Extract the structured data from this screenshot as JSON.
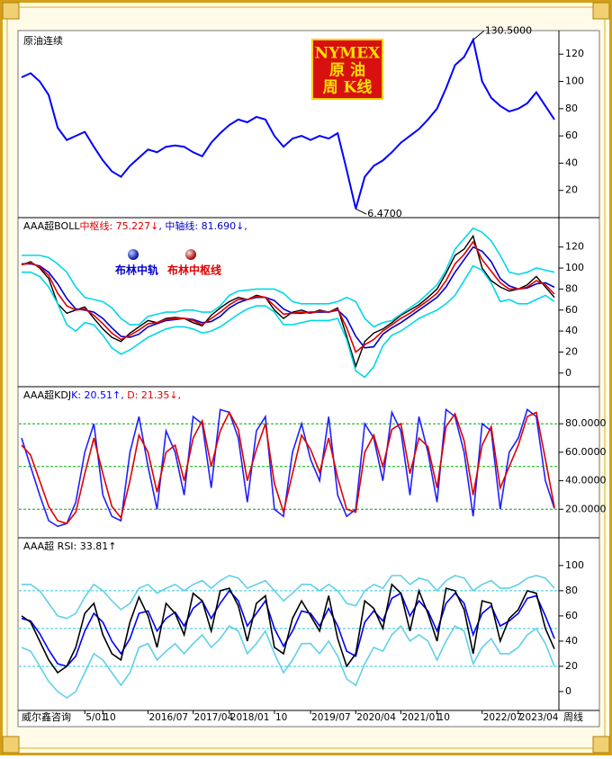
{
  "chart_data": [
    {
      "type": "line",
      "title": "原油连续",
      "badge": [
        "NYMEX",
        "原 油",
        "周 K线"
      ],
      "series": [
        {
          "name": "原油连续",
          "color": "#0000ff",
          "values": [
            103,
            106,
            100,
            90,
            66,
            57,
            60,
            63,
            52,
            42,
            34,
            30,
            38,
            44,
            50,
            48,
            52,
            53,
            52,
            48,
            45,
            55,
            62,
            68,
            72,
            70,
            74,
            72,
            60,
            52,
            58,
            60,
            57,
            60,
            58,
            62,
            35,
            6.47,
            30,
            38,
            42,
            48,
            55,
            60,
            65,
            72,
            80,
            95,
            112,
            118,
            130.5,
            100,
            88,
            82,
            78,
            80,
            84,
            92,
            82,
            72
          ]
        }
      ],
      "annotations": [
        {
          "value": 130.5,
          "label": "130.5000"
        },
        {
          "value": 6.47,
          "label": "6.4700"
        }
      ],
      "ylim": [
        0,
        136
      ],
      "yticks": [
        20,
        40,
        60,
        80,
        100,
        120
      ]
    },
    {
      "type": "line",
      "title": "AAA超BOLL",
      "readouts": [
        {
          "text": "中枢线: 75.227↓",
          "color": "#e00000"
        },
        {
          "text": ", 中轴线: 81.690↓,",
          "color": "#0000cc"
        }
      ],
      "series": [
        {
          "color": "#00d8e8",
          "values": [
            112,
            112,
            112,
            110,
            104,
            96,
            82,
            72,
            70,
            68,
            62,
            52,
            46,
            46,
            54,
            56,
            58,
            58,
            60,
            60,
            58,
            58,
            64,
            74,
            78,
            79,
            80,
            80,
            80,
            76,
            68,
            66,
            66,
            66,
            66,
            68,
            72,
            68,
            52,
            44,
            48,
            50,
            56,
            62,
            68,
            76,
            84,
            98,
            118,
            128,
            138,
            134,
            126,
            112,
            96,
            94,
            96,
            100,
            98,
            96
          ]
        },
        {
          "color": "#00d8e8",
          "values": [
            96,
            96,
            92,
            82,
            66,
            46,
            40,
            48,
            46,
            36,
            24,
            18,
            22,
            28,
            34,
            38,
            42,
            44,
            44,
            42,
            38,
            40,
            44,
            50,
            56,
            61,
            64,
            64,
            58,
            46,
            46,
            48,
            50,
            50,
            50,
            52,
            32,
            2,
            -4,
            6,
            26,
            36,
            40,
            46,
            52,
            56,
            60,
            66,
            74,
            88,
            102,
            98,
            86,
            68,
            70,
            66,
            66,
            70,
            74,
            68
          ]
        },
        {
          "name": "布林中轨",
          "color": "#0000cc",
          "values": [
            104,
            104,
            102,
            96,
            85,
            71,
            61,
            60,
            58,
            52,
            43,
            35,
            34,
            37,
            44,
            47,
            50,
            51,
            52,
            51,
            48,
            49,
            54,
            62,
            67,
            70,
            72,
            72,
            69,
            61,
            57,
            57,
            58,
            58,
            58,
            60,
            52,
            35,
            24,
            25,
            37,
            43,
            48,
            54,
            60,
            66,
            72,
            82,
            96,
            108,
            120,
            116,
            106,
            90,
            83,
            80,
            81,
            85,
            86,
            81.69
          ]
        },
        {
          "name": "布林中枢线",
          "color": "#e00000",
          "values": [
            103,
            105,
            101,
            93,
            76,
            64,
            60,
            61,
            55,
            47,
            38,
            32,
            36,
            41,
            47,
            48,
            51,
            52,
            52,
            50,
            46,
            52,
            58,
            65,
            70,
            70,
            73,
            72,
            64,
            56,
            57,
            58,
            57,
            59,
            58,
            61,
            43,
            20,
            27,
            32,
            40,
            46,
            52,
            57,
            63,
            69,
            76,
            88,
            104,
            113,
            125,
            108,
            97,
            86,
            80,
            80,
            82,
            88,
            84,
            75.227
          ]
        }
      ],
      "ylim": [
        -13,
        148
      ],
      "yticks": [
        0,
        20,
        40,
        60,
        80,
        100,
        120
      ]
    },
    {
      "type": "line",
      "title": "AAA超KDJ",
      "readouts": [
        {
          "text": "K: 20.51↑,",
          "color": "#0000ff"
        },
        {
          "text": " D: 21.35↓,",
          "color": "#e00000"
        }
      ],
      "series": [
        {
          "color": "#2020ff",
          "values": [
            70,
            50,
            30,
            12,
            8,
            10,
            25,
            60,
            80,
            30,
            15,
            12,
            60,
            85,
            50,
            20,
            75,
            60,
            30,
            85,
            80,
            35,
            90,
            88,
            70,
            25,
            75,
            85,
            20,
            15,
            60,
            80,
            55,
            40,
            85,
            30,
            15,
            20,
            80,
            70,
            40,
            88,
            75,
            30,
            85,
            60,
            25,
            90,
            85,
            60,
            15,
            80,
            75,
            20,
            60,
            70,
            90,
            85,
            40,
            20.51
          ]
        },
        {
          "color": "#e00000",
          "values": [
            65,
            58,
            40,
            22,
            12,
            10,
            18,
            45,
            70,
            45,
            22,
            14,
            40,
            72,
            60,
            32,
            60,
            65,
            40,
            70,
            82,
            50,
            75,
            88,
            76,
            40,
            62,
            80,
            38,
            18,
            45,
            72,
            62,
            46,
            70,
            42,
            20,
            18,
            60,
            72,
            50,
            76,
            80,
            45,
            70,
            64,
            35,
            78,
            87,
            68,
            30,
            65,
            78,
            35,
            50,
            65,
            85,
            88,
            55,
            21.35
          ]
        }
      ],
      "ref_lines": [
        20,
        50,
        80
      ],
      "ref_color": "#00b000",
      "ylim": [
        0,
        106
      ],
      "yticks": [
        {
          "value": 20,
          "label": "20.0000"
        },
        {
          "value": 40,
          "label": "40.0000"
        },
        {
          "value": 60,
          "label": "60.0000"
        },
        {
          "value": 80,
          "label": "80.0000"
        }
      ]
    },
    {
      "type": "line",
      "title": "AAA超 RSI: 33.81↑",
      "series": [
        {
          "color": "#60d0e8",
          "values": [
            85,
            85,
            80,
            70,
            60,
            58,
            62,
            75,
            85,
            80,
            72,
            65,
            70,
            82,
            85,
            78,
            82,
            85,
            80,
            85,
            88,
            82,
            88,
            92,
            90,
            82,
            85,
            88,
            80,
            72,
            78,
            85,
            85,
            80,
            85,
            80,
            70,
            68,
            80,
            85,
            82,
            92,
            92,
            85,
            90,
            88,
            80,
            88,
            92,
            90,
            80,
            85,
            88,
            82,
            82,
            85,
            90,
            92,
            90,
            82
          ]
        },
        {
          "color": "#60d0e8",
          "values": [
            35,
            32,
            20,
            8,
            0,
            -5,
            0,
            15,
            30,
            25,
            15,
            5,
            15,
            35,
            38,
            25,
            32,
            38,
            30,
            38,
            45,
            35,
            42,
            52,
            48,
            30,
            38,
            48,
            30,
            15,
            25,
            38,
            38,
            30,
            40,
            28,
            10,
            5,
            22,
            35,
            32,
            45,
            52,
            40,
            45,
            40,
            25,
            40,
            52,
            48,
            22,
            35,
            42,
            30,
            30,
            35,
            45,
            50,
            38,
            20
          ]
        },
        {
          "color": "#0000ff",
          "values": [
            58,
            56,
            46,
            33,
            22,
            20,
            28,
            48,
            62,
            55,
            40,
            30,
            42,
            62,
            64,
            48,
            58,
            63,
            52,
            66,
            72,
            58,
            70,
            80,
            72,
            52,
            62,
            72,
            50,
            36,
            48,
            64,
            62,
            52,
            66,
            52,
            32,
            28,
            55,
            64,
            56,
            74,
            78,
            60,
            72,
            64,
            48,
            70,
            78,
            70,
            45,
            62,
            68,
            52,
            56,
            62,
            74,
            76,
            60,
            42
          ]
        },
        {
          "color": "#000000",
          "values": [
            60,
            55,
            40,
            25,
            15,
            20,
            35,
            62,
            70,
            45,
            30,
            25,
            55,
            75,
            60,
            35,
            70,
            62,
            45,
            78,
            72,
            48,
            80,
            82,
            68,
            40,
            70,
            76,
            35,
            30,
            58,
            72,
            60,
            48,
            76,
            42,
            20,
            30,
            72,
            66,
            50,
            85,
            78,
            48,
            80,
            62,
            40,
            82,
            80,
            65,
            30,
            72,
            70,
            40,
            58,
            65,
            80,
            78,
            50,
            33.81
          ]
        }
      ],
      "ref_lines": [
        20,
        50,
        80
      ],
      "ref_color": "#30c8e0",
      "ylim": [
        -15,
        122
      ],
      "yticks": [
        0,
        20,
        40,
        60,
        80,
        100
      ],
      "categories": [
        null,
        null,
        null,
        null,
        null,
        null,
        null,
        "5/01",
        null,
        "10",
        null,
        null,
        null,
        null,
        "2016/07",
        null,
        null,
        null,
        null,
        "2017/04",
        null,
        null,
        null,
        "2018/01",
        null,
        null,
        null,
        null,
        "10",
        null,
        null,
        null,
        "2019/07",
        null,
        null,
        null,
        null,
        "2020/04",
        null,
        null,
        null,
        null,
        "2021/01",
        null,
        null,
        null,
        "10",
        null,
        null,
        null,
        null,
        "2022/07",
        null,
        null,
        null,
        "2023/04",
        null,
        null,
        null,
        null
      ],
      "source": "威尔鑫咨询",
      "period_label": "周线"
    }
  ]
}
